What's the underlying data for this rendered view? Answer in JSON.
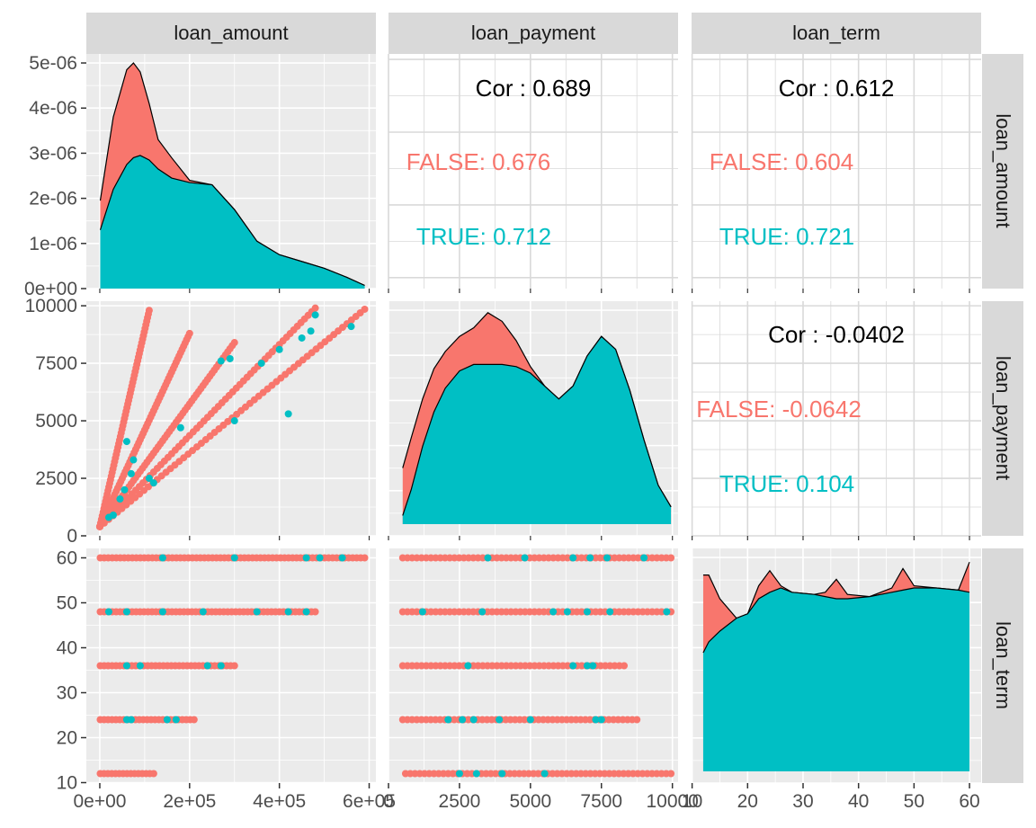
{
  "chart_data": {
    "type": "scatter-matrix",
    "variables": [
      "loan_amount",
      "loan_payment",
      "loan_term"
    ],
    "groups": [
      {
        "name": "FALSE",
        "color": "#F8766D"
      },
      {
        "name": "TRUE",
        "color": "#00BFC4"
      }
    ],
    "axes": {
      "loan_amount": {
        "range": [
          -30000,
          615000
        ],
        "ticks": [
          0,
          200000,
          400000,
          600000
        ],
        "tick_labels": [
          "0e+00",
          "2e+05",
          "4e+05",
          "6e+05"
        ]
      },
      "loan_payment": {
        "range": [
          0,
          10200
        ],
        "ticks": [
          0,
          2500,
          5000,
          7500,
          10000
        ],
        "tick_labels": [
          "0",
          "2500",
          "5000",
          "7500",
          "10000"
        ]
      },
      "loan_term": {
        "range": [
          9.9,
          62.1
        ],
        "ticks": [
          10,
          20,
          30,
          40,
          50,
          60
        ],
        "tick_labels": [
          "10",
          "20",
          "30",
          "40",
          "50",
          "60"
        ]
      }
    },
    "density_axis": {
      "range": [
        0,
        5.2e-06
      ],
      "ticks": [
        0,
        1e-06,
        2e-06,
        3e-06,
        4e-06,
        5e-06
      ],
      "tick_labels": [
        "0e+00",
        "1e-06",
        "2e-06",
        "3e-06",
        "4e-06",
        "5e-06"
      ]
    },
    "correlations": [
      {
        "row": "loan_amount",
        "col": "loan_payment",
        "total_label": "Cor : 0.689",
        "groups": [
          {
            "label": "FALSE: 0.676"
          },
          {
            "label": "TRUE: 0.712"
          }
        ]
      },
      {
        "row": "loan_amount",
        "col": "loan_term",
        "total_label": "Cor : 0.612",
        "groups": [
          {
            "label": "FALSE: 0.604"
          },
          {
            "label": "TRUE: 0.721"
          }
        ]
      },
      {
        "row": "loan_payment",
        "col": "loan_term",
        "total_label": "Cor : -0.0402",
        "groups": [
          {
            "label": "FALSE: -0.0642"
          },
          {
            "label": "TRUE: 0.104"
          }
        ]
      }
    ],
    "densities": {
      "loan_amount": {
        "x": [
          1000,
          30000,
          60000,
          75000,
          90000,
          110000,
          130000,
          160000,
          200000,
          250000,
          300000,
          350000,
          400000,
          450000,
          500000,
          550000,
          590000
        ],
        "FALSE": [
          1.95e-06,
          3.8e-06,
          4.85e-06,
          5e-06,
          4.8e-06,
          4.1e-06,
          3.3e-06,
          2.9e-06,
          2.4e-06,
          2.3e-06,
          1.75e-06,
          1.05e-06,
          7.5e-07,
          6e-07,
          4.5e-07,
          2.5e-07,
          7e-08
        ],
        "TRUE": [
          1.3e-06,
          2.2e-06,
          2.75e-06,
          2.9e-06,
          2.95e-06,
          2.85e-06,
          2.65e-06,
          2.45e-06,
          2.35e-06,
          2.3e-06,
          1.75e-06,
          1.05e-06,
          7.5e-07,
          6e-07,
          4.5e-07,
          2.5e-07,
          7e-08
        ]
      },
      "loan_payment": {
        "x": [
          500,
          800,
          1200,
          1600,
          2000,
          2500,
          3000,
          3500,
          4000,
          4500,
          5000,
          5500,
          6000,
          6500,
          7000,
          7500,
          8000,
          8500,
          9000,
          9500,
          9950
        ],
        "FALSE": [
          0.26,
          0.4,
          0.58,
          0.72,
          0.8,
          0.87,
          0.91,
          0.98,
          0.94,
          0.85,
          0.73,
          0.64,
          0.58,
          0.64,
          0.78,
          0.87,
          0.81,
          0.62,
          0.39,
          0.18,
          0.08
        ],
        "TRUE": [
          0.04,
          0.16,
          0.36,
          0.52,
          0.63,
          0.71,
          0.74,
          0.74,
          0.74,
          0.73,
          0.7,
          0.64,
          0.58,
          0.64,
          0.78,
          0.87,
          0.81,
          0.62,
          0.39,
          0.18,
          0.08
        ]
      },
      "loan_term": {
        "x": [
          12,
          13,
          15,
          18,
          20,
          22,
          24,
          26,
          28,
          32,
          34,
          36,
          38,
          42,
          46,
          48,
          50,
          54,
          58,
          60
        ],
        "FALSE": [
          0.91,
          0.91,
          0.8,
          0.71,
          0.73,
          0.86,
          0.93,
          0.86,
          0.83,
          0.82,
          0.83,
          0.89,
          0.82,
          0.81,
          0.85,
          0.94,
          0.86,
          0.85,
          0.84,
          0.97
        ],
        "TRUE": [
          0.55,
          0.6,
          0.65,
          0.71,
          0.73,
          0.8,
          0.83,
          0.85,
          0.83,
          0.82,
          0.81,
          0.8,
          0.8,
          0.81,
          0.83,
          0.84,
          0.85,
          0.85,
          0.84,
          0.83
        ]
      }
    },
    "scatter": {
      "payment_vs_amount": {
        "FALSE_lines": [
          {
            "from": [
              0,
              400
            ],
            "to": [
              110000,
              9800
            ]
          },
          {
            "from": [
              0,
              400
            ],
            "to": [
              200000,
              8800
            ]
          },
          {
            "from": [
              0,
              400
            ],
            "to": [
              300000,
              8400
            ]
          },
          {
            "from": [
              0,
              400
            ],
            "to": [
              480000,
              9900
            ]
          },
          {
            "from": [
              0,
              400
            ],
            "to": [
              590000,
              9850
            ]
          }
        ],
        "TRUE_points": [
          [
            60000,
            4100
          ],
          [
            55000,
            2000
          ],
          [
            70000,
            2700
          ],
          [
            75000,
            3300
          ],
          [
            110000,
            2500
          ],
          [
            120000,
            2300
          ],
          [
            180000,
            4700
          ],
          [
            270000,
            7600
          ],
          [
            290000,
            7700
          ],
          [
            300000,
            5000
          ],
          [
            360000,
            7500
          ],
          [
            400000,
            8100
          ],
          [
            420000,
            5300
          ],
          [
            450000,
            8600
          ],
          [
            470000,
            8900
          ],
          [
            480000,
            9600
          ],
          [
            560000,
            9100
          ],
          [
            20000,
            800
          ],
          [
            30000,
            900
          ],
          [
            45000,
            1600
          ]
        ]
      },
      "term_vs_amount": {
        "levels": [
          12,
          24,
          36,
          48,
          60
        ],
        "FALSE_ranges": [
          [
            1000,
            120000
          ],
          [
            1000,
            210000
          ],
          [
            1000,
            300000
          ],
          [
            1000,
            480000
          ],
          [
            1000,
            590000
          ]
        ],
        "TRUE_points": [
          [
            60000,
            24
          ],
          [
            70000,
            24
          ],
          [
            150000,
            24
          ],
          [
            170000,
            24
          ],
          [
            60000,
            36
          ],
          [
            90000,
            36
          ],
          [
            240000,
            36
          ],
          [
            270000,
            36
          ],
          [
            20000,
            48
          ],
          [
            60000,
            48
          ],
          [
            140000,
            48
          ],
          [
            230000,
            48
          ],
          [
            350000,
            48
          ],
          [
            420000,
            48
          ],
          [
            460000,
            48
          ],
          [
            140000,
            60
          ],
          [
            300000,
            60
          ],
          [
            460000,
            60
          ],
          [
            490000,
            60
          ],
          [
            540000,
            60
          ]
        ]
      },
      "term_vs_payment": {
        "levels": [
          12,
          24,
          36,
          48,
          60
        ],
        "FALSE_ranges": [
          [
            600,
            9950
          ],
          [
            500,
            8750
          ],
          [
            500,
            8300
          ],
          [
            500,
            9950
          ],
          [
            500,
            9950
          ]
        ],
        "TRUE_points": [
          [
            2500,
            12
          ],
          [
            3100,
            12
          ],
          [
            4000,
            12
          ],
          [
            5500,
            12
          ],
          [
            2100,
            24
          ],
          [
            2600,
            24
          ],
          [
            3000,
            24
          ],
          [
            3900,
            24
          ],
          [
            5000,
            24
          ],
          [
            7300,
            24
          ],
          [
            7500,
            24
          ],
          [
            2800,
            36
          ],
          [
            6500,
            36
          ],
          [
            7000,
            36
          ],
          [
            7200,
            36
          ],
          [
            1200,
            48
          ],
          [
            3300,
            48
          ],
          [
            5800,
            48
          ],
          [
            6300,
            48
          ],
          [
            7000,
            48
          ],
          [
            7800,
            48
          ],
          [
            9800,
            48
          ],
          [
            3500,
            60
          ],
          [
            4800,
            60
          ],
          [
            6500,
            60
          ],
          [
            7100,
            60
          ],
          [
            7700,
            60
          ],
          [
            9000,
            60
          ]
        ]
      }
    }
  }
}
